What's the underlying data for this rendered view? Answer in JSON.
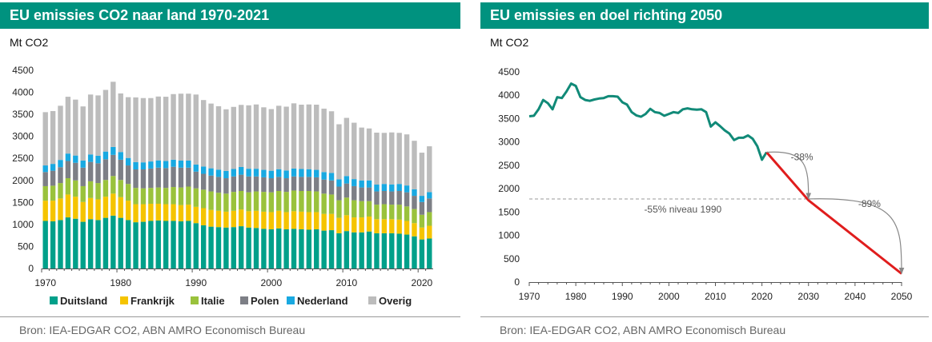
{
  "colors": {
    "title_bg": "#00927f",
    "Duitsland": "#00a08a",
    "Frankrijk": "#f5c400",
    "Italie": "#9ac23c",
    "Polen": "#7d7f86",
    "Nederland": "#19a9e1",
    "Overig": "#bcbcbc",
    "history_line": "#118a78",
    "target_line": "#e01d1d",
    "reference_line": "#999999",
    "arrow": "#888888"
  },
  "left": {
    "title": "EU emissies CO2 naar land 1970-2021",
    "unit": "Mt CO2",
    "source": "Bron: IEA-EDGAR CO2, ABN AMRO Economisch Bureau",
    "chart_data": {
      "type": "bar",
      "stacked": true,
      "x": [
        1970,
        1971,
        1972,
        1973,
        1974,
        1975,
        1976,
        1977,
        1978,
        1979,
        1980,
        1981,
        1982,
        1983,
        1984,
        1985,
        1986,
        1987,
        1988,
        1989,
        1990,
        1991,
        1992,
        1993,
        1994,
        1995,
        1996,
        1997,
        1998,
        1999,
        2000,
        2001,
        2002,
        2003,
        2004,
        2005,
        2006,
        2007,
        2008,
        2009,
        2010,
        2011,
        2012,
        2013,
        2014,
        2015,
        2016,
        2017,
        2018,
        2019,
        2020,
        2021
      ],
      "ylim": [
        0,
        4500
      ],
      "yticks": [
        0,
        500,
        1000,
        1500,
        2000,
        2500,
        3000,
        3500,
        4000,
        4500
      ],
      "xticks": [
        1970,
        1980,
        1990,
        2000,
        2010,
        2020
      ],
      "legend_position": "bottom",
      "series": [
        {
          "name": "Duitsland",
          "values": [
            1080,
            1070,
            1100,
            1160,
            1130,
            1060,
            1120,
            1100,
            1150,
            1200,
            1150,
            1100,
            1050,
            1060,
            1080,
            1090,
            1080,
            1080,
            1070,
            1080,
            1030,
            980,
            950,
            940,
            930,
            940,
            960,
            930,
            920,
            900,
            890,
            910,
            890,
            900,
            890,
            880,
            890,
            860,
            870,
            800,
            850,
            820,
            820,
            840,
            800,
            800,
            800,
            790,
            770,
            730,
            660,
            680
          ]
        },
        {
          "name": "Frankrijk",
          "values": [
            460,
            470,
            490,
            520,
            500,
            450,
            480,
            470,
            480,
            500,
            470,
            440,
            410,
            400,
            390,
            380,
            380,
            380,
            370,
            370,
            370,
            390,
            380,
            370,
            360,
            370,
            380,
            370,
            390,
            390,
            390,
            400,
            390,
            400,
            400,
            400,
            390,
            380,
            370,
            350,
            360,
            340,
            340,
            340,
            320,
            320,
            320,
            320,
            310,
            300,
            270,
            290
          ]
        },
        {
          "name": "Italie",
          "values": [
            330,
            340,
            350,
            370,
            370,
            360,
            380,
            370,
            380,
            400,
            390,
            380,
            370,
            360,
            360,
            370,
            370,
            390,
            400,
            410,
            420,
            420,
            420,
            410,
            410,
            430,
            420,
            430,
            440,
            450,
            450,
            450,
            460,
            470,
            470,
            480,
            470,
            460,
            440,
            400,
            400,
            390,
            370,
            350,
            330,
            340,
            330,
            340,
            330,
            320,
            290,
            310
          ]
        },
        {
          "name": "Polen",
          "values": [
            320,
            340,
            360,
            390,
            400,
            420,
            440,
            450,
            470,
            480,
            460,
            420,
            420,
            430,
            440,
            450,
            450,
            460,
            450,
            430,
            380,
            360,
            360,
            360,
            350,
            350,
            370,
            360,
            340,
            330,
            320,
            320,
            310,
            320,
            320,
            320,
            320,
            320,
            320,
            310,
            320,
            320,
            310,
            310,
            300,
            300,
            300,
            310,
            320,
            300,
            290,
            310
          ]
        },
        {
          "name": "Nederland",
          "values": [
            150,
            155,
            165,
            170,
            165,
            160,
            170,
            170,
            175,
            180,
            175,
            170,
            165,
            160,
            160,
            165,
            160,
            160,
            160,
            160,
            160,
            165,
            165,
            165,
            165,
            170,
            175,
            175,
            175,
            170,
            170,
            175,
            175,
            180,
            180,
            175,
            170,
            170,
            170,
            165,
            170,
            160,
            160,
            160,
            155,
            160,
            160,
            160,
            155,
            150,
            140,
            145
          ]
        },
        {
          "name": "Overig",
          "values": [
            1210,
            1200,
            1230,
            1290,
            1270,
            1230,
            1360,
            1370,
            1400,
            1480,
            1330,
            1380,
            1470,
            1460,
            1440,
            1450,
            1460,
            1490,
            1520,
            1520,
            1590,
            1510,
            1470,
            1440,
            1400,
            1410,
            1410,
            1440,
            1460,
            1420,
            1400,
            1440,
            1450,
            1480,
            1460,
            1470,
            1480,
            1440,
            1400,
            1250,
            1320,
            1280,
            1200,
            1180,
            1180,
            1160,
            1180,
            1160,
            1160,
            1100,
            980,
            1040
          ]
        }
      ]
    }
  },
  "right": {
    "title": "EU emissies en doel richting 2050",
    "unit": "Mt CO2",
    "source": "Bron: IEA-EDGAR CO2, ABN AMRO Economisch Bureau",
    "chart_data": {
      "type": "line",
      "xlim": [
        1970,
        2050
      ],
      "ylim": [
        0,
        4500
      ],
      "yticks": [
        0,
        500,
        1000,
        1500,
        2000,
        2500,
        3000,
        3500,
        4000,
        4500
      ],
      "xticks": [
        1970,
        1980,
        1990,
        2000,
        2010,
        2020,
        2030,
        2040,
        2050
      ],
      "series": [
        {
          "name": "",
          "x": [
            1970,
            1971,
            1972,
            1973,
            1974,
            1975,
            1976,
            1977,
            1978,
            1979,
            1980,
            1981,
            1982,
            1983,
            1984,
            1985,
            1986,
            1987,
            1988,
            1989,
            1990,
            1991,
            1992,
            1993,
            1994,
            1995,
            1996,
            1997,
            1998,
            1999,
            2000,
            2001,
            2002,
            2003,
            2004,
            2005,
            2006,
            2007,
            2008,
            2009,
            2010,
            2011,
            2012,
            2013,
            2014,
            2015,
            2016,
            2017,
            2018,
            2019,
            2020,
            2021
          ],
          "y": [
            3550,
            3560,
            3700,
            3900,
            3830,
            3700,
            3960,
            3940,
            4080,
            4250,
            4200,
            3960,
            3900,
            3880,
            3910,
            3930,
            3940,
            3980,
            3980,
            3970,
            3850,
            3800,
            3640,
            3570,
            3540,
            3600,
            3710,
            3640,
            3620,
            3560,
            3600,
            3640,
            3620,
            3700,
            3720,
            3700,
            3690,
            3700,
            3640,
            3330,
            3420,
            3340,
            3250,
            3180,
            3040,
            3090,
            3090,
            3140,
            3070,
            2910,
            2620,
            2780
          ]
        },
        {
          "name": "",
          "x": [
            2021,
            2030,
            2050
          ],
          "y": [
            2780,
            1750,
            180
          ]
        }
      ],
      "reference_line": {
        "y": 1780,
        "label": "-55% niveau 1990"
      },
      "annotations": [
        {
          "text": "-38%",
          "from": [
            2021,
            2780
          ],
          "to": [
            2030,
            1780
          ]
        },
        {
          "text": "-89%",
          "from": [
            2030,
            1780
          ],
          "to": [
            2050,
            180
          ]
        }
      ]
    }
  }
}
